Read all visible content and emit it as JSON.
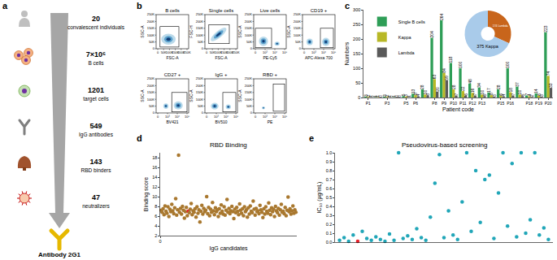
{
  "panel_labels": [
    "a",
    "b",
    "c",
    "d",
    "e"
  ],
  "diagram": {
    "steps": [
      {
        "number": "20",
        "label": "convalescent individuals"
      },
      {
        "number": "7×10⁶",
        "label": "B cells"
      },
      {
        "number": "1201",
        "label": "target cells"
      },
      {
        "number": "549",
        "label": "IgG antibodies"
      },
      {
        "number": "143",
        "label": "RBD binders"
      },
      {
        "number": "47",
        "label": "neutralizers"
      }
    ],
    "result": "Antibody 2G1"
  },
  "flow": {
    "plots": [
      {
        "title": "B cells",
        "x_label": "FSC-A",
        "y_label": "SSC-A",
        "x_ticks": [
          "0",
          "50K",
          "100K",
          "150K",
          "200K",
          "250K"
        ],
        "y_ticks": [
          "0",
          "50K",
          "100K",
          "150K",
          "200K",
          "250K"
        ]
      },
      {
        "title": "Single cells",
        "x_label": "FSC-A",
        "y_label": "FSC-H",
        "x_ticks": [
          "0",
          "50K",
          "100K",
          "150K",
          "200K",
          "250K"
        ],
        "y_ticks": [
          "0",
          "50K",
          "100K",
          "150K",
          "200K",
          "250K"
        ]
      },
      {
        "title": "Live cells",
        "x_label": "PE-Cy5",
        "y_label": "SSC-A",
        "x_ticks": [
          "0",
          "10³",
          "10⁴",
          "10⁵"
        ],
        "y_ticks": [
          "0",
          "50K",
          "100K",
          "150K",
          "200K",
          "250K"
        ]
      },
      {
        "title": "CD19 +",
        "x_label": "APC-Alexa 700",
        "y_label": "SSC-A",
        "x_ticks": [
          "0",
          "10³",
          "10⁴",
          "10⁵"
        ],
        "y_ticks": [
          "0",
          "50K",
          "100K",
          "150K",
          "200K",
          "250K"
        ]
      },
      {
        "title": "CD27 +",
        "x_label": "BV421",
        "y_label": "SSC-A",
        "x_ticks": [
          "0",
          "10³",
          "10⁴",
          "10⁵"
        ],
        "y_ticks": [
          "0",
          "50K",
          "100K",
          "150K",
          "200K",
          "250K"
        ]
      },
      {
        "title": "IgG +",
        "x_label": "BV510",
        "y_label": "SSC-A",
        "x_ticks": [
          "0",
          "10³",
          "10⁴",
          "10⁵"
        ],
        "y_ticks": [
          "0",
          "50K",
          "100K",
          "150K",
          "200K",
          "250K"
        ]
      },
      {
        "title": "RBD +",
        "x_label": "PE",
        "y_label": "SSC-A",
        "x_ticks": [
          "0",
          "10³",
          "10⁴",
          "10⁵"
        ],
        "y_ticks": [
          "0",
          "50K",
          "100K",
          "150K",
          "200K",
          "250K"
        ]
      }
    ]
  },
  "chart_data": [
    {
      "type": "bar",
      "x_label": "Patient code",
      "y_label": "Numbers",
      "categories": [
        "P1",
        null,
        "P3",
        null,
        "P5",
        "P6",
        null,
        "P8",
        "P9",
        "P10",
        "P11",
        "P12",
        "P13",
        null,
        "P15",
        "P16",
        null,
        "P18",
        "P19",
        "P20"
      ],
      "series": [
        {
          "name": "Single B cells",
          "color": "#2e9e57",
          "values": [
            3,
            1,
            3,
            1,
            5,
            13,
            28,
            204,
            264,
            118,
            100,
            48,
            34,
            17,
            28,
            100,
            37,
            7,
            14,
            223
          ]
        },
        {
          "name": "Kappa",
          "color": "#b8b826",
          "values": [
            2,
            1,
            2,
            0,
            3,
            8,
            10,
            63,
            84,
            28,
            22,
            16,
            10,
            8,
            6,
            18,
            10,
            4,
            6,
            74
          ]
        },
        {
          "name": "Lambda",
          "color": "#5a5a5a",
          "values": [
            1,
            0,
            1,
            0,
            1,
            4,
            6,
            20,
            59,
            7,
            6,
            7,
            5,
            3,
            4,
            7,
            5,
            2,
            3,
            33
          ]
        }
      ],
      "ylim": [
        0,
        300
      ],
      "yticks": [
        0,
        50,
        100,
        150,
        200,
        250,
        300
      ],
      "legend": "upper left",
      "data_labels": true
    },
    {
      "type": "pie",
      "categories": [
        "Lambda",
        "Kappa"
      ],
      "values": [
        174,
        375
      ],
      "value_labels": [
        "174 Lambda",
        "375 Kappa"
      ],
      "colors": [
        "#c8651b",
        "#a9cbea"
      ]
    },
    {
      "type": "scatter",
      "title": "RBD Binding",
      "x_label": "IgG candidates",
      "y_label": "Binding score",
      "x": [
        1,
        2,
        3,
        4,
        5,
        6,
        7,
        8,
        9,
        10,
        11,
        12,
        13,
        14,
        15,
        16,
        17,
        18,
        19,
        20,
        21,
        22,
        23,
        24,
        25,
        26,
        27,
        28,
        29,
        30,
        31,
        32,
        33,
        34,
        35,
        36,
        37,
        38,
        39,
        40,
        41,
        42,
        43,
        44,
        45,
        46,
        47,
        48,
        49,
        50,
        51,
        52,
        53,
        54,
        55,
        56,
        57,
        58,
        59,
        60,
        61,
        62,
        63,
        64,
        65,
        66,
        67,
        68,
        69,
        70,
        71,
        72,
        73,
        74,
        75,
        76,
        77,
        78,
        79,
        80,
        81,
        82,
        83,
        84,
        85,
        86,
        87,
        88,
        89,
        90,
        91,
        92,
        93,
        94,
        95,
        96,
        97,
        98,
        99,
        100,
        101,
        102,
        103,
        104,
        105,
        106,
        107,
        108,
        109,
        110,
        111,
        112,
        113,
        114,
        115,
        116,
        117,
        118,
        119,
        120,
        121,
        122,
        123,
        124,
        125,
        126,
        127,
        128,
        129,
        130,
        131,
        132,
        133,
        134,
        135,
        136,
        137,
        138,
        139,
        140
      ],
      "values": [
        7.2,
        6.8,
        7.5,
        6.3,
        8.1,
        7.0,
        6.6,
        7.9,
        5.9,
        7.4,
        6.9,
        8.4,
        7.1,
        6.5,
        7.7,
        9.6,
        6.2,
        7.3,
        18.5,
        6.8,
        7.6,
        6.4,
        8.0,
        7.2,
        5.6,
        6.9,
        7.8,
        6.1,
        7.0,
        6.7,
        7.4,
        8.6,
        6.3,
        7.1,
        6.8,
        7.5,
        5.8,
        7.9,
        6.6,
        7.3,
        4.8,
        7.0,
        8.2,
        6.4,
        7.6,
        6.9,
        7.2,
        10.0,
        6.5,
        7.8,
        6.1,
        7.4,
        6.8,
        8.8,
        7.1,
        6.3,
        7.7,
        6.9,
        7.3,
        5.9,
        7.5,
        6.6,
        8.3,
        7.0,
        6.4,
        7.9,
        6.2,
        7.2,
        9.4,
        6.8,
        7.6,
        6.5,
        7.1,
        8.0,
        6.9,
        5.5,
        7.4,
        6.7,
        7.8,
        7.0,
        6.3,
        8.5,
        7.2,
        6.6,
        7.5,
        6.1,
        7.9,
        6.9,
        7.3,
        5.8,
        7.7,
        6.4,
        8.1,
        7.0,
        6.7,
        9.1,
        7.4,
        6.2,
        7.6,
        6.9,
        7.1,
        6.5,
        8.2,
        7.3,
        6.8,
        5.7,
        7.5,
        6.4,
        7.9,
        7.0,
        6.6,
        8.7,
        7.2,
        6.3,
        7.7,
        6.9,
        7.4,
        5.9,
        8.0,
        7.1,
        6.7,
        7.6,
        6.2,
        7.3,
        8.4,
        6.8,
        7.0,
        6.5,
        7.8,
        6.1,
        7.2,
        9.9,
        6.9,
        7.5,
        6.4,
        7.1,
        8.1,
        6.6,
        7.3,
        6.8
      ],
      "colors": [
        "#a9782f",
        "#a9782f",
        "#a9782f",
        "#a9782f",
        "#a9782f",
        "#a9782f",
        "#a9782f",
        "#a9782f",
        "#a9782f",
        "#a9782f",
        "#a9782f",
        "#a9782f",
        "#a9782f",
        "#a9782f",
        "#a9782f",
        "#a9782f",
        "#a9782f",
        "#a9782f",
        "#a9782f",
        "#a9782f",
        "#a9782f",
        "#a9782f",
        "#a9782f",
        "#a9782f",
        "#a9782f",
        "#a9782f",
        "#a9782f",
        "#a9782f",
        "#e8202a",
        "#a9782f",
        "#a9782f",
        "#a9782f",
        "#a9782f",
        "#a9782f",
        "#a9782f",
        "#a9782f",
        "#a9782f",
        "#a9782f",
        "#a9782f",
        "#a9782f",
        "#a9782f",
        "#a9782f",
        "#a9782f",
        "#a9782f",
        "#a9782f",
        "#a9782f",
        "#a9782f",
        "#a9782f",
        "#a9782f",
        "#a9782f",
        "#a9782f",
        "#a9782f",
        "#a9782f",
        "#a9782f",
        "#a9782f",
        "#a9782f",
        "#a9782f",
        "#a9782f",
        "#a9782f",
        "#a9782f",
        "#a9782f",
        "#a9782f",
        "#a9782f",
        "#a9782f",
        "#a9782f",
        "#a9782f",
        "#a9782f",
        "#a9782f",
        "#a9782f",
        "#a9782f",
        "#a9782f",
        "#a9782f",
        "#a9782f",
        "#a9782f",
        "#a9782f",
        "#a9782f",
        "#a9782f",
        "#a9782f",
        "#a9782f",
        "#a9782f",
        "#a9782f",
        "#a9782f",
        "#a9782f",
        "#a9782f",
        "#a9782f",
        "#a9782f",
        "#a9782f",
        "#a9782f",
        "#a9782f",
        "#a9782f",
        "#a9782f",
        "#a9782f",
        "#a9782f",
        "#a9782f",
        "#a9782f",
        "#a9782f",
        "#a9782f",
        "#a9782f",
        "#a9782f",
        "#a9782f",
        "#a9782f",
        "#a9782f",
        "#a9782f",
        "#a9782f",
        "#a9782f",
        "#a9782f",
        "#a9782f",
        "#a9782f",
        "#a9782f",
        "#a9782f",
        "#a9782f",
        "#a9782f",
        "#a9782f",
        "#a9782f",
        "#a9782f",
        "#a9782f",
        "#a9782f",
        "#a9782f",
        "#a9782f",
        "#a9782f",
        "#a9782f",
        "#a9782f",
        "#a9782f",
        "#a9782f",
        "#a9782f",
        "#a9782f",
        "#a9782f",
        "#a9782f",
        "#a9782f",
        "#a9782f",
        "#a9782f",
        "#a9782f",
        "#a9782f",
        "#a9782f",
        "#a9782f",
        "#a9782f",
        "#a9782f",
        "#a9782f",
        "#a9782f",
        "#a9782f"
      ],
      "xlim": [
        0,
        141
      ],
      "xticks": [
        0
      ],
      "ylim": [
        2,
        19
      ],
      "yticks": [
        2,
        4,
        6,
        8,
        10,
        12,
        14,
        16,
        18
      ]
    },
    {
      "type": "scatter",
      "title": "Pseudovirus-based screening",
      "y_label": "IC₅₀ (μg/mL)",
      "x": [
        1,
        2,
        3,
        4,
        5,
        6,
        7,
        8,
        9,
        10,
        11,
        12,
        13,
        14,
        15,
        16,
        17,
        18,
        19,
        20,
        21,
        22,
        23,
        24,
        25,
        26,
        27,
        28,
        29,
        30,
        31,
        32,
        33,
        34,
        35,
        36,
        37,
        38,
        39,
        40,
        41,
        42,
        43,
        44,
        45,
        46,
        47
      ],
      "values": [
        0.02,
        0.05,
        0.01,
        0.08,
        0.01,
        0.12,
        0.04,
        0.02,
        0.06,
        0.03,
        0.01,
        0.09,
        0.02,
        1.0,
        0.04,
        0.07,
        0.03,
        0.15,
        0.05,
        0.02,
        0.28,
        0.66,
        0.98,
        0.05,
        0.35,
        0.08,
        0.03,
        0.45,
        1.0,
        0.12,
        0.8,
        0.22,
        0.7,
        0.75,
        0.04,
        0.55,
        1.0,
        0.18,
        0.88,
        0.06,
        1.0,
        0.1,
        0.25,
        1.0,
        0.08,
        0.16,
        0.03
      ],
      "colors": [
        "#21a6b8",
        "#21a6b8",
        "#21a6b8",
        "#21a6b8",
        "#e8202a",
        "#21a6b8",
        "#21a6b8",
        "#21a6b8",
        "#21a6b8",
        "#21a6b8",
        "#21a6b8",
        "#21a6b8",
        "#21a6b8",
        "#21a6b8",
        "#21a6b8",
        "#21a6b8",
        "#21a6b8",
        "#21a6b8",
        "#21a6b8",
        "#21a6b8",
        "#21a6b8",
        "#21a6b8",
        "#21a6b8",
        "#21a6b8",
        "#21a6b8",
        "#21a6b8",
        "#21a6b8",
        "#21a6b8",
        "#21a6b8",
        "#21a6b8",
        "#21a6b8",
        "#21a6b8",
        "#21a6b8",
        "#21a6b8",
        "#21a6b8",
        "#21a6b8",
        "#21a6b8",
        "#21a6b8",
        "#21a6b8",
        "#21a6b8",
        "#21a6b8",
        "#21a6b8",
        "#21a6b8",
        "#21a6b8",
        "#21a6b8",
        "#21a6b8",
        "#21a6b8"
      ],
      "xlim": [
        0,
        48
      ],
      "ylim": [
        0,
        1
      ],
      "yticks": [
        {
          "value": 0,
          "label": "0.0"
        },
        {
          "value": 0.1,
          "label": "0.1"
        },
        {
          "value": 0.2,
          "label": "0.2"
        },
        {
          "value": 0.3,
          "label": "0.3"
        },
        {
          "value": 0.4,
          "label": "0.4"
        },
        {
          "value": 0.5,
          "label": "0.5"
        },
        {
          "value": 0.6,
          "label": "0.6"
        },
        {
          "value": 0.7,
          "label": "0.7"
        },
        {
          "value": 0.8,
          "label": "0.8"
        },
        {
          "value": 0.9,
          "label": "0.9"
        },
        {
          "value": 1,
          "label": "1.0"
        }
      ],
      "tick_labels": "y"
    }
  ]
}
